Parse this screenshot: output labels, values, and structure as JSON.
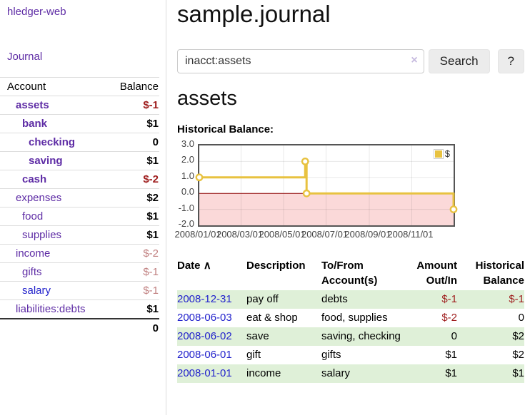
{
  "app": {
    "title": "hledger-web",
    "nav_journal": "Journal"
  },
  "sidebar": {
    "accounts_header": {
      "account": "Account",
      "balance": "Balance"
    },
    "accounts": [
      {
        "name": "assets",
        "level": 0,
        "bold": true,
        "link_color": "purple",
        "balance": "$-1",
        "balance_style": "negative-strong"
      },
      {
        "name": "bank",
        "level": 1,
        "bold": true,
        "link_color": "purple",
        "balance": "$1",
        "balance_style": "normal"
      },
      {
        "name": "checking",
        "level": 2,
        "bold": true,
        "link_color": "purple",
        "balance": "0",
        "balance_style": "normal"
      },
      {
        "name": "saving",
        "level": 2,
        "bold": true,
        "link_color": "purple",
        "balance": "$1",
        "balance_style": "normal"
      },
      {
        "name": "cash",
        "level": 1,
        "bold": true,
        "link_color": "purple",
        "balance": "$-2",
        "balance_style": "negative-strong"
      },
      {
        "name": "expenses",
        "level": 0,
        "bold": false,
        "link_color": "purple",
        "balance": "$2",
        "balance_style": "normal"
      },
      {
        "name": "food",
        "level": 1,
        "bold": false,
        "link_color": "purple",
        "balance": "$1",
        "balance_style": "normal"
      },
      {
        "name": "supplies",
        "level": 1,
        "bold": false,
        "link_color": "purple",
        "balance": "$1",
        "balance_style": "normal"
      },
      {
        "name": "income",
        "level": 0,
        "bold": false,
        "link_color": "purple",
        "balance": "$-2",
        "balance_style": "negative-muted"
      },
      {
        "name": "gifts",
        "level": 1,
        "bold": false,
        "link_color": "purple",
        "balance": "$-1",
        "balance_style": "negative-muted"
      },
      {
        "name": "salary",
        "level": 1,
        "bold": false,
        "link_color": "blue",
        "balance": "$-1",
        "balance_style": "negative-muted"
      },
      {
        "name": "liabilities:debts",
        "level": 0,
        "bold": false,
        "link_color": "purple",
        "balance": "$1",
        "balance_style": "normal"
      }
    ],
    "total": "0"
  },
  "header": {
    "title": "sample.journal"
  },
  "search": {
    "value": "inacct:assets",
    "clear_icon": "×",
    "button": "Search",
    "help_button": "?"
  },
  "account_page": {
    "title": "assets",
    "chart_label": "Historical Balance:"
  },
  "chart_data": {
    "type": "line",
    "title": "Historical Balance",
    "series": [
      {
        "name": "$",
        "color": "#e8c240",
        "step": true,
        "points": [
          [
            "2008-01-01",
            1.0
          ],
          [
            "2008-06-01",
            2.0
          ],
          [
            "2008-06-03",
            0.0
          ],
          [
            "2008-12-31",
            -1.0
          ]
        ]
      }
    ],
    "ylim": [
      -2.0,
      3.0
    ],
    "yticks": [
      "3.0",
      "2.0",
      "1.0",
      "0.0",
      "-1.0",
      "-2.0"
    ],
    "xticks": [
      "2008/01/01",
      "2008/03/01",
      "2008/05/01",
      "2008/07/01",
      "2008/09/01",
      "2008/11/01"
    ],
    "x_range": [
      "2008-01-01",
      "2008-12-31"
    ],
    "legend_position": "top-right",
    "grid": true,
    "negative_region_color": "#fbd9d9",
    "zero_line_color": "#8b0000",
    "grid_color": "rgba(0,0,0,0.09)"
  },
  "transactions": {
    "sort_icon": "∧",
    "columns": [
      "Date",
      "Description",
      "To/From Account(s)",
      "Amount Out/In",
      "Historical Balance"
    ],
    "rows": [
      {
        "date": "2008-12-31",
        "description": "pay off",
        "accounts": "debts",
        "amount": "$-1",
        "amount_negative": true,
        "balance": "$-1",
        "balance_negative": true,
        "highlight": true
      },
      {
        "date": "2008-06-03",
        "description": "eat & shop",
        "accounts": "food, supplies",
        "amount": "$-2",
        "amount_negative": true,
        "balance": "0",
        "balance_negative": false,
        "highlight": false
      },
      {
        "date": "2008-06-02",
        "description": "save",
        "accounts": "saving, checking",
        "amount": "0",
        "amount_negative": false,
        "balance": "$2",
        "balance_negative": false,
        "highlight": true
      },
      {
        "date": "2008-06-01",
        "description": "gift",
        "accounts": "gifts",
        "amount": "$1",
        "amount_negative": false,
        "balance": "$2",
        "balance_negative": false,
        "highlight": false
      },
      {
        "date": "2008-01-01",
        "description": "income",
        "accounts": "salary",
        "amount": "$1",
        "amount_negative": false,
        "balance": "$1",
        "balance_negative": false,
        "highlight": true
      }
    ]
  }
}
